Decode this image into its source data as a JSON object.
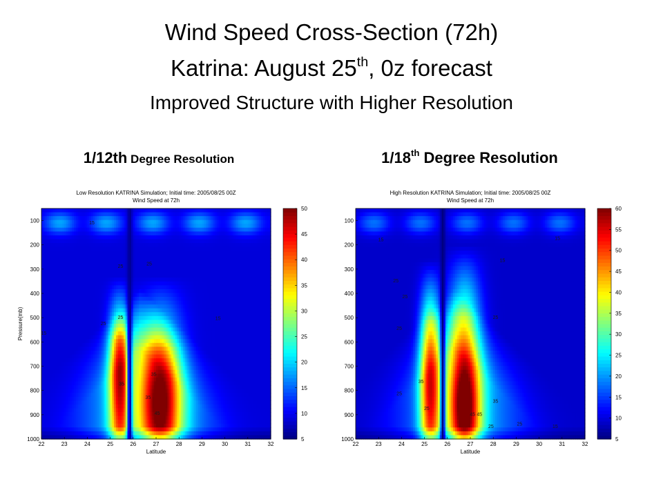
{
  "slide": {
    "title_line1": "Wind Speed Cross-Section (72h)",
    "title_line2_pre": "Katrina: August 25",
    "title_line2_sup": "th",
    "title_line2_post": ", 0z forecast",
    "title_line3": "Improved Structure with Higher Resolution",
    "left_heading_main": "1/12th",
    "left_heading_rest": " Degree Resolution",
    "right_heading_pre": "1/18",
    "right_heading_sup": "th",
    "right_heading_post": " Degree Resolution"
  },
  "colors": {
    "contour": "#1a1a1a",
    "background": "#ffffff",
    "colormap": "jet"
  },
  "chart_data": [
    {
      "type": "heatmap",
      "title": "Low Resolution KATRINA Simulation; Initial time: 2005/08/25 00Z",
      "subtitle": "Wind Speed at 72h",
      "xlabel": "Latitude",
      "ylabel": "Pressure(mb)",
      "x_ticks": [
        22,
        23,
        24,
        25,
        26,
        27,
        28,
        29,
        30,
        31,
        32
      ],
      "y_ticks": [
        100,
        200,
        300,
        400,
        500,
        600,
        700,
        800,
        900,
        1000
      ],
      "xlim": [
        22,
        32
      ],
      "ylim": [
        1000,
        50
      ],
      "colorbar_ticks": [
        5,
        10,
        15,
        20,
        25,
        30,
        35,
        40,
        45,
        50
      ],
      "colorbar_range": [
        5,
        50
      ],
      "contour_levels": [
        15,
        25,
        35,
        45
      ],
      "features": [
        {
          "label": "eastern lobe",
          "lat_center": 25.4,
          "half_width": 0.45,
          "pressure_top": 330,
          "peak": 42,
          "peak_pressure": 730
        },
        {
          "label": "eye",
          "lat_center": 25.85,
          "half_width": 0.12,
          "min": 6
        },
        {
          "label": "western lobe",
          "lat_center": 27.2,
          "half_width": 0.9,
          "pressure_top": 330,
          "peak": 45,
          "peak_pressure": 850
        }
      ],
      "contour_labels": [
        {
          "text": "15",
          "x": 22.1,
          "y": 570
        },
        {
          "text": "25",
          "x": 24.7,
          "y": 530
        },
        {
          "text": "25",
          "x": 25.45,
          "y": 505
        },
        {
          "text": "25",
          "x": 25.45,
          "y": 295
        },
        {
          "text": "25",
          "x": 26.7,
          "y": 285
        },
        {
          "text": "15",
          "x": 29.7,
          "y": 510
        },
        {
          "text": "15",
          "x": 24.2,
          "y": 115
        },
        {
          "text": "35",
          "x": 25.5,
          "y": 780
        },
        {
          "text": "35",
          "x": 26.9,
          "y": 740
        },
        {
          "text": "35",
          "x": 26.65,
          "y": 835
        },
        {
          "text": "45",
          "x": 27.05,
          "y": 900
        }
      ]
    },
    {
      "type": "heatmap",
      "title": "High Resolution KATRINA Simulation; Initial time: 2005/08/25 00Z",
      "subtitle": "Wind Speed at 72h",
      "xlabel": "Latitude",
      "ylabel": "",
      "x_ticks": [
        22,
        23,
        24,
        25,
        26,
        27,
        28,
        29,
        30,
        31,
        32
      ],
      "y_ticks": [
        100,
        200,
        300,
        400,
        500,
        600,
        700,
        800,
        900,
        1000
      ],
      "xlim": [
        22,
        32
      ],
      "ylim": [
        1000,
        50
      ],
      "colorbar_ticks": [
        5,
        10,
        15,
        20,
        25,
        30,
        35,
        40,
        45,
        50,
        55,
        60
      ],
      "colorbar_range": [
        5,
        60
      ],
      "contour_levels": [
        15,
        25,
        35,
        45
      ],
      "features": [
        {
          "label": "eastern lobe",
          "lat_center": 25.25,
          "half_width": 0.45,
          "pressure_top": 260,
          "peak": 50,
          "peak_pressure": 780
        },
        {
          "label": "eye",
          "lat_center": 25.8,
          "half_width": 0.11,
          "min": 5
        },
        {
          "label": "western lobe",
          "lat_center": 26.75,
          "half_width": 0.7,
          "pressure_top": 200,
          "peak": 58,
          "peak_pressure": 860
        }
      ],
      "contour_labels": [
        {
          "text": "15",
          "x": 23.1,
          "y": 185
        },
        {
          "text": "25",
          "x": 23.75,
          "y": 355
        },
        {
          "text": "25",
          "x": 24.15,
          "y": 420
        },
        {
          "text": "25",
          "x": 23.9,
          "y": 550
        },
        {
          "text": "35",
          "x": 24.85,
          "y": 770
        },
        {
          "text": "25",
          "x": 23.9,
          "y": 820
        },
        {
          "text": "25",
          "x": 25.1,
          "y": 880
        },
        {
          "text": "25",
          "x": 28.1,
          "y": 505
        },
        {
          "text": "35",
          "x": 28.1,
          "y": 850
        },
        {
          "text": "45",
          "x": 27.1,
          "y": 905
        },
        {
          "text": "45",
          "x": 27.4,
          "y": 905
        },
        {
          "text": "25",
          "x": 27.9,
          "y": 955
        },
        {
          "text": "25",
          "x": 29.15,
          "y": 945
        },
        {
          "text": "15",
          "x": 30.7,
          "y": 955
        },
        {
          "text": "15",
          "x": 30.8,
          "y": 180
        },
        {
          "text": "15",
          "x": 28.4,
          "y": 270
        }
      ]
    }
  ]
}
